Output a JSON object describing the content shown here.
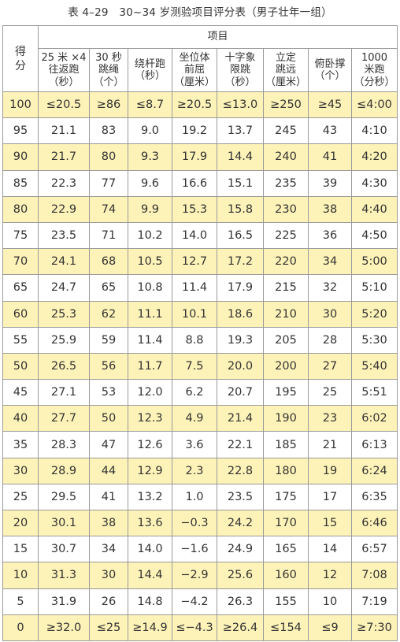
{
  "caption": "表 4–29　30~34 岁测验项目评分表（男子壮年一组）",
  "header": {
    "score_label": "得\n分",
    "group_label": "项目",
    "columns": [
      {
        "line1": "25 米 ×4",
        "line2": "往返跑",
        "line3": "（秒）"
      },
      {
        "line1": "30 秒",
        "line2": "跳绳",
        "line3": "（个）"
      },
      {
        "line1": "绕杆跑",
        "line2": "",
        "line3": "（秒）"
      },
      {
        "line1": "坐位体",
        "line2": "前屈",
        "line3": "（厘米）"
      },
      {
        "line1": "十字象",
        "line2": "限跳",
        "line3": "（秒）"
      },
      {
        "line1": "立定",
        "line2": "跳远",
        "line3": "（厘米）"
      },
      {
        "line1": "俯卧撑",
        "line2": "",
        "line3": "（个）"
      },
      {
        "line1": "1000",
        "line2": "米跑",
        "line3": "（分秒）"
      }
    ]
  },
  "rows": [
    {
      "score": "100",
      "v": [
        "≤20.5",
        "≥86",
        "≤8.7",
        "≥20.5",
        "≤13.0",
        "≥250",
        "≥45",
        "≤4:00"
      ],
      "highlight": true
    },
    {
      "score": "95",
      "v": [
        "21.1",
        "83",
        "9.0",
        "19.2",
        "13.7",
        "245",
        "43",
        "4:10"
      ],
      "highlight": false
    },
    {
      "score": "90",
      "v": [
        "21.7",
        "80",
        "9.3",
        "17.9",
        "14.4",
        "240",
        "41",
        "4:20"
      ],
      "highlight": true
    },
    {
      "score": "85",
      "v": [
        "22.3",
        "77",
        "9.6",
        "16.6",
        "15.1",
        "235",
        "39",
        "4:30"
      ],
      "highlight": false
    },
    {
      "score": "80",
      "v": [
        "22.9",
        "74",
        "9.9",
        "15.3",
        "15.8",
        "230",
        "38",
        "4:40"
      ],
      "highlight": true
    },
    {
      "score": "75",
      "v": [
        "23.5",
        "71",
        "10.2",
        "14.0",
        "16.5",
        "225",
        "36",
        "4:50"
      ],
      "highlight": false
    },
    {
      "score": "70",
      "v": [
        "24.1",
        "68",
        "10.5",
        "12.7",
        "17.2",
        "220",
        "34",
        "5:00"
      ],
      "highlight": true
    },
    {
      "score": "65",
      "v": [
        "24.7",
        "65",
        "10.8",
        "11.4",
        "17.9",
        "215",
        "32",
        "5:10"
      ],
      "highlight": false
    },
    {
      "score": "60",
      "v": [
        "25.3",
        "62",
        "11.1",
        "10.1",
        "18.6",
        "210",
        "30",
        "5:20"
      ],
      "highlight": true
    },
    {
      "score": "55",
      "v": [
        "25.9",
        "59",
        "11.4",
        "8.8",
        "19.3",
        "205",
        "28",
        "5:30"
      ],
      "highlight": false
    },
    {
      "score": "50",
      "v": [
        "26.5",
        "56",
        "11.7",
        "7.5",
        "20.0",
        "200",
        "27",
        "5:40"
      ],
      "highlight": true
    },
    {
      "score": "45",
      "v": [
        "27.1",
        "53",
        "12.0",
        "6.2",
        "20.7",
        "195",
        "25",
        "5:51"
      ],
      "highlight": false
    },
    {
      "score": "40",
      "v": [
        "27.7",
        "50",
        "12.3",
        "4.9",
        "21.4",
        "190",
        "23",
        "6:02"
      ],
      "highlight": true
    },
    {
      "score": "35",
      "v": [
        "28.3",
        "47",
        "12.6",
        "3.6",
        "22.1",
        "185",
        "21",
        "6:13"
      ],
      "highlight": false
    },
    {
      "score": "30",
      "v": [
        "28.9",
        "44",
        "12.9",
        "2.3",
        "22.8",
        "180",
        "19",
        "6:24"
      ],
      "highlight": true
    },
    {
      "score": "25",
      "v": [
        "29.5",
        "41",
        "13.2",
        "1.0",
        "23.5",
        "175",
        "17",
        "6:35"
      ],
      "highlight": false
    },
    {
      "score": "20",
      "v": [
        "30.1",
        "38",
        "13.6",
        "−0.3",
        "24.2",
        "170",
        "15",
        "6:46"
      ],
      "highlight": true
    },
    {
      "score": "15",
      "v": [
        "30.7",
        "34",
        "14.0",
        "−1.6",
        "24.9",
        "165",
        "14",
        "6:57"
      ],
      "highlight": false
    },
    {
      "score": "10",
      "v": [
        "31.3",
        "30",
        "14.4",
        "−2.9",
        "25.6",
        "160",
        "12",
        "7:08"
      ],
      "highlight": true
    },
    {
      "score": "5",
      "v": [
        "31.9",
        "26",
        "14.8",
        "−4.2",
        "26.3",
        "155",
        "10",
        "7:19"
      ],
      "highlight": false
    },
    {
      "score": "0",
      "v": [
        "≥32.0",
        "≤25",
        "≥14.9",
        "≤−4.3",
        "≥26.4",
        "≤154",
        "≤9",
        "≥7:30"
      ],
      "highlight": true
    }
  ]
}
